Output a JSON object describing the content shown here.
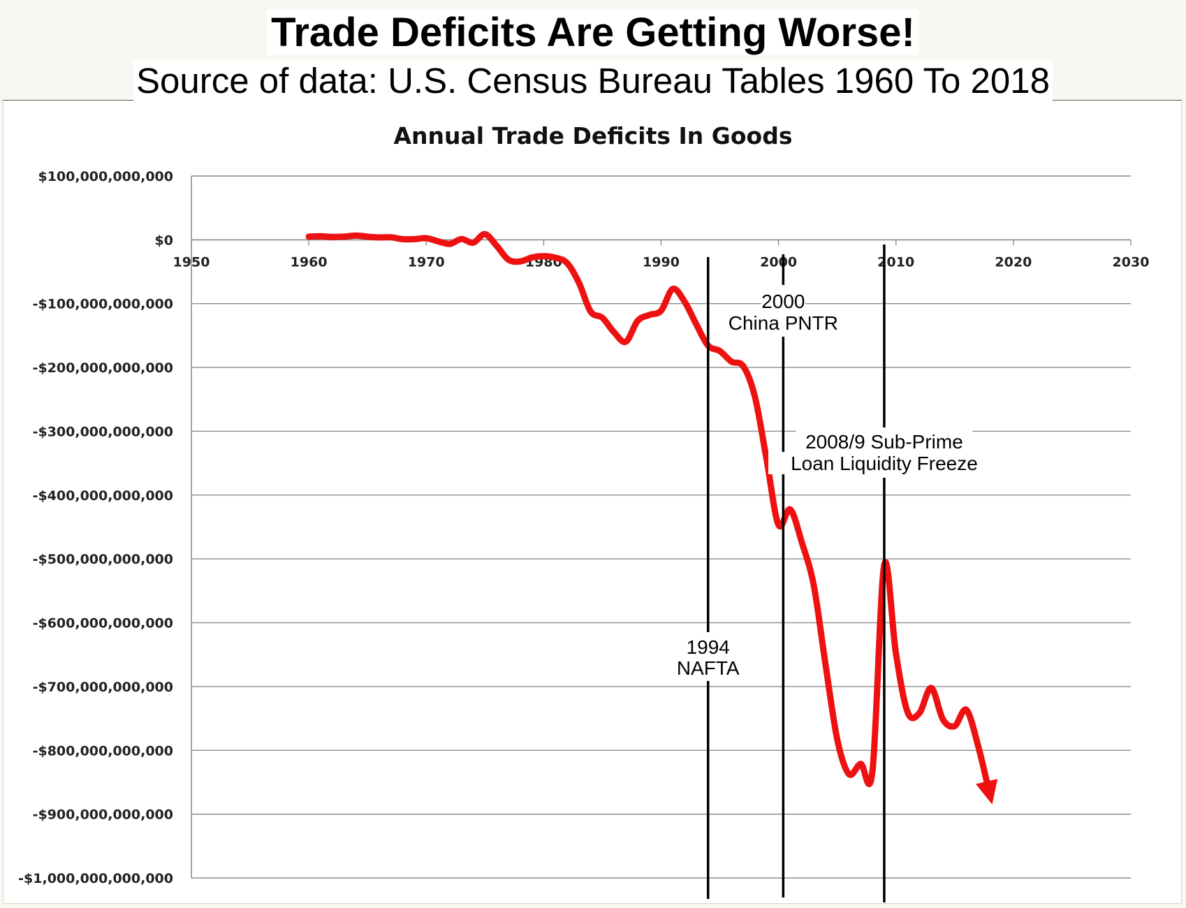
{
  "header": {
    "title": "Trade Deficits Are Getting Worse!",
    "subtitle": "Source of data:  U.S. Census Bureau Tables 1960 To 2018"
  },
  "colors": {
    "line": "#ee1111",
    "grid": "#8c8c8c",
    "event_line": "#000000"
  },
  "chart_data": {
    "type": "line",
    "title": "Annual Trade Deficits In Goods",
    "xlabel": "",
    "ylabel": "",
    "xlim": [
      1950,
      2030
    ],
    "ylim": [
      -1000000000000,
      100000000000
    ],
    "x_ticks": [
      1950,
      1960,
      1970,
      1980,
      1990,
      2000,
      2010,
      2020,
      2030
    ],
    "x_tick_labels": [
      "1950",
      "1960",
      "1970",
      "1980",
      "1990",
      "2000",
      "2010",
      "2020",
      "2030"
    ],
    "y_ticks": [
      100000000000,
      0,
      -100000000000,
      -200000000000,
      -300000000000,
      -400000000000,
      -500000000000,
      -600000000000,
      -700000000000,
      -800000000000,
      -900000000000,
      -1000000000000
    ],
    "y_tick_labels": [
      "$100,000,000,000",
      "$0",
      "-$100,000,000,000",
      "-$200,000,000,000",
      "-$300,000,000,000",
      "-$400,000,000,000",
      "-$500,000,000,000",
      "-$600,000,000,000",
      "-$700,000,000,000",
      "-$800,000,000,000",
      "-$900,000,000,000",
      "-$1,000,000,000,000"
    ],
    "grid": true,
    "legend": "none",
    "series": [
      {
        "x": [
          1960,
          1961,
          1962,
          1963,
          1964,
          1965,
          1966,
          1967,
          1968,
          1969,
          1970,
          1971,
          1972,
          1973,
          1974,
          1975,
          1976,
          1977,
          1978,
          1979,
          1980,
          1981,
          1982,
          1983,
          1984,
          1985,
          1986,
          1987,
          1988,
          1989,
          1990,
          1991,
          1992,
          1993,
          1994,
          1995,
          1996,
          1997,
          1998,
          1999,
          2000,
          2001,
          2002,
          2003,
          2004,
          2005,
          2006,
          2007,
          2008,
          2009,
          2010,
          2011,
          2012,
          2013,
          2014,
          2015,
          2016,
          2017,
          2018
        ],
        "y": [
          5000000000,
          5500000000,
          4500000000,
          5000000000,
          6800000000,
          5000000000,
          3800000000,
          4000000000,
          1000000000,
          1000000000,
          2600000000,
          -2300000000,
          -6400000000,
          1300000000,
          -4500000000,
          8900000000,
          -9500000000,
          -31100000000,
          -33900000000,
          -27600000000,
          -25500000000,
          -28000000000,
          -36500000000,
          -67100000000,
          -112500000000,
          -122100000000,
          -145100000000,
          -159600000000,
          -127000000000,
          -117700000000,
          -111000000000,
          -76900000000,
          -96900000000,
          -132500000000,
          -165800000000,
          -174200000000,
          -191000000000,
          -198100000000,
          -246700000000,
          -346000000000,
          -446800000000,
          -422400000000,
          -475200000000,
          -541600000000,
          -665400000000,
          -782800000000,
          -837300000000,
          -821200000000,
          -832500000000,
          -509700000000,
          -648700000000,
          -740600000000,
          -741500000000,
          -702200000000,
          -751500000000,
          -761900000000,
          -736600000000,
          -793000000000,
          -870000000000
        ]
      }
    ],
    "annotations": [
      {
        "x": 1994,
        "label": [
          "1994",
          "NAFTA"
        ]
      },
      {
        "x": 2000.4,
        "label": [
          "2000",
          "China PNTR"
        ]
      },
      {
        "x": 2009,
        "label": [
          "2008/9 Sub-Prime",
          "Loan Liquidity Freeze"
        ]
      }
    ]
  }
}
